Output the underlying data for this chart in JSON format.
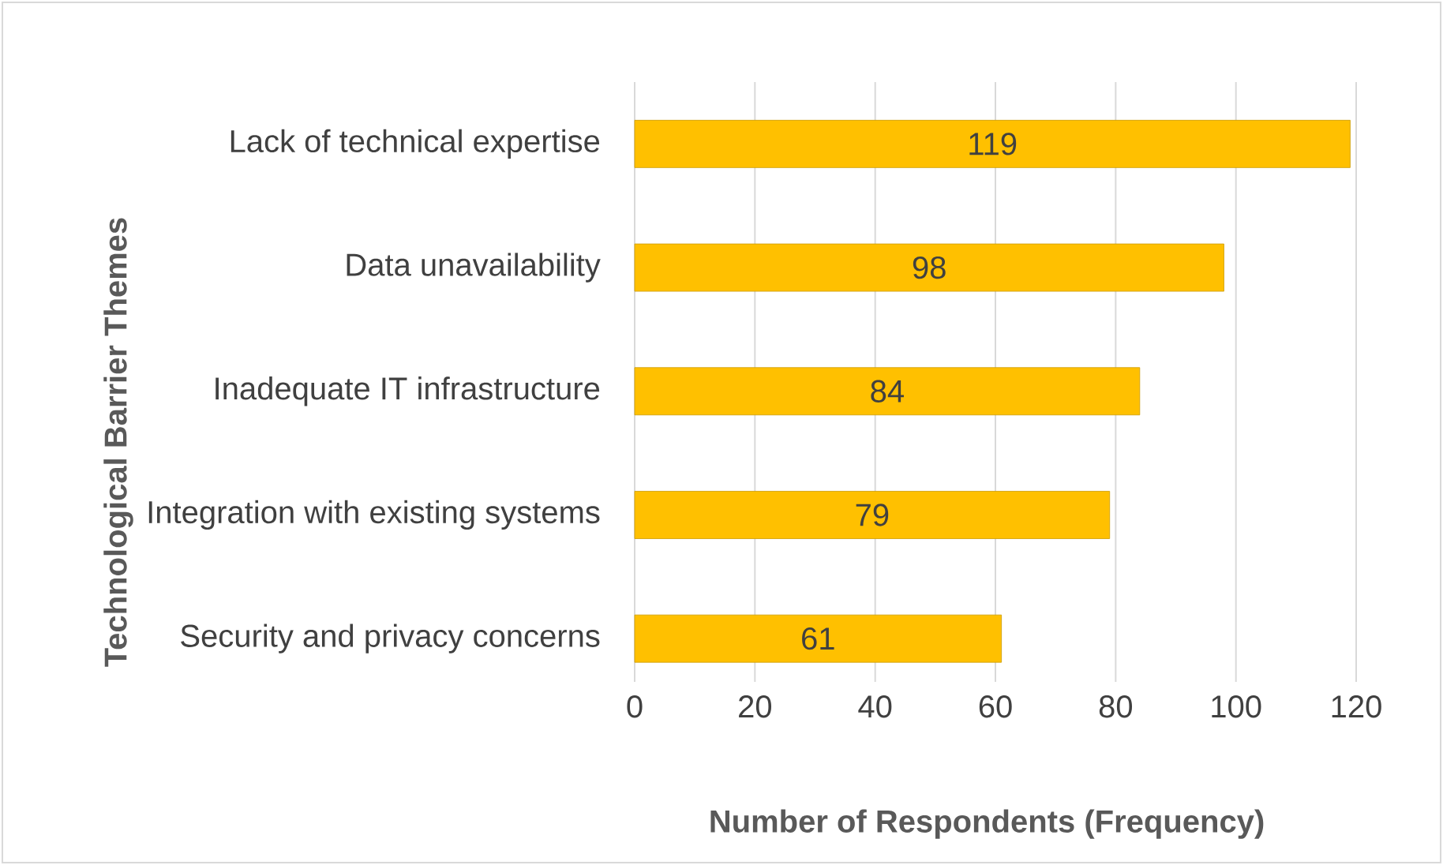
{
  "chart_data": {
    "type": "bar",
    "orientation": "horizontal",
    "xlabel": "Number of Respondents (Frequency)",
    "ylabel": "Technological Barrier Themes",
    "categories": [
      "Lack of technical expertise",
      "Data unavailability",
      "Inadequate IT infrastructure",
      "Integration with existing systems",
      "Security and privacy concerns"
    ],
    "values": [
      119,
      98,
      84,
      79,
      61
    ],
    "color": "#ffc000",
    "xlim": [
      0,
      120
    ],
    "xticks": [
      0,
      20,
      40,
      60,
      80,
      100,
      120
    ],
    "grid": "x",
    "data_labels": true
  }
}
